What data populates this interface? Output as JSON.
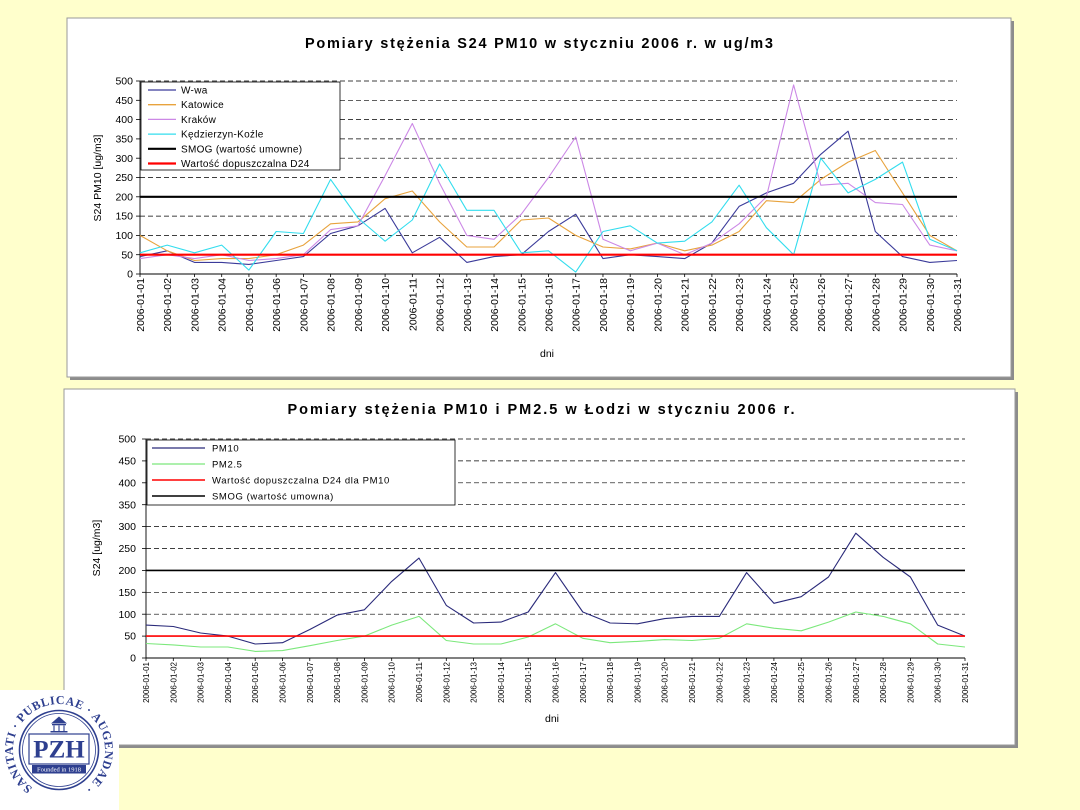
{
  "slide": {
    "background_color": "#FFFFCC",
    "logo": {
      "circle_text": "SANITATI · PUBLICAE · AUGENDAE ·",
      "center_text": "PZH",
      "founded_text": "Founded in 1918",
      "color": "#2E3F8F",
      "emblem_icon": "temple-emblem-icon"
    }
  },
  "chart_data": [
    {
      "type": "line",
      "title": "Pomiary stężenia S24 PM10 w styczniu 2006 r. w ug/m3",
      "xlabel": "dni",
      "ylabel": "S24 PM10 [ug/m3]",
      "ylim": [
        0,
        500
      ],
      "yticks": [
        0,
        50,
        100,
        150,
        200,
        250,
        300,
        350,
        400,
        450,
        500
      ],
      "grid": true,
      "legend": "top-left",
      "categories": [
        "2006-01-01",
        "2006-01-02",
        "2006-01-03",
        "2006-01-04",
        "2006-01-05",
        "2006-01-06",
        "2006-01-07",
        "2006-01-08",
        "2006-01-09",
        "2006-01-10",
        "2006-01-11",
        "2006-01-12",
        "2006-01-13",
        "2006-01-14",
        "2006-01-15",
        "2006-01-16",
        "2006-01-17",
        "2006-01-18",
        "2006-01-19",
        "2006-01-20",
        "2006-01-21",
        "2006-01-22",
        "2006-01-23",
        "2006-01-24",
        "2006-01-25",
        "2006-01-26",
        "2006-01-27",
        "2006-01-28",
        "2006-01-29",
        "2006-01-30",
        "2006-01-31"
      ],
      "series": [
        {
          "name": "W-wa",
          "color": "#3B3B9A",
          "values": [
            45,
            60,
            30,
            30,
            25,
            35,
            45,
            105,
            125,
            170,
            55,
            95,
            30,
            45,
            50,
            110,
            155,
            40,
            50,
            45,
            40,
            80,
            175,
            210,
            235,
            310,
            370,
            110,
            45,
            30,
            35
          ]
        },
        {
          "name": "Katowice",
          "color": "#E8A33D",
          "values": [
            100,
            60,
            35,
            40,
            40,
            50,
            75,
            130,
            135,
            195,
            215,
            135,
            70,
            70,
            140,
            145,
            100,
            70,
            65,
            80,
            60,
            75,
            110,
            190,
            185,
            245,
            290,
            320,
            210,
            100,
            60
          ]
        },
        {
          "name": "Kraków",
          "color": "#CC88E6",
          "values": [
            40,
            50,
            40,
            50,
            35,
            40,
            50,
            115,
            125,
            255,
            390,
            235,
            100,
            90,
            155,
            250,
            355,
            90,
            60,
            80,
            50,
            80,
            130,
            200,
            490,
            230,
            235,
            185,
            180,
            75,
            60
          ]
        },
        {
          "name": "Kędzierzyn-Koźle",
          "color": "#33DDEE",
          "values": [
            55,
            75,
            55,
            75,
            10,
            110,
            105,
            245,
            145,
            85,
            140,
            285,
            165,
            165,
            55,
            60,
            5,
            110,
            125,
            80,
            85,
            135,
            230,
            120,
            50,
            300,
            210,
            245,
            290,
            90,
            60
          ]
        }
      ],
      "reference_lines": [
        {
          "name": "SMOG (wartość umowne)",
          "value": 200,
          "color": "#000000"
        },
        {
          "name": "Wartość dopuszczalna D24",
          "value": 50,
          "color": "#FF0000"
        }
      ]
    },
    {
      "type": "line",
      "title": "Pomiary stężenia PM10 i PM2.5 w Łodzi w styczniu 2006 r.",
      "xlabel": "dni",
      "ylabel": "S24 [ug/m3]",
      "ylim": [
        0,
        500
      ],
      "yticks": [
        0,
        50,
        100,
        150,
        200,
        250,
        300,
        350,
        400,
        450,
        500
      ],
      "grid": true,
      "legend": "top-left",
      "categories": [
        "2006-01-01",
        "2006-01-02",
        "2006-01-03",
        "2006-01-04",
        "2006-01-05",
        "2006-01-06",
        "2006-01-07",
        "2006-01-08",
        "2006-01-09",
        "2006-01-10",
        "2006-01-11",
        "2006-01-12",
        "2006-01-13",
        "2006-01-14",
        "2006-01-15",
        "2006-01-16",
        "2006-01-17",
        "2006-01-18",
        "2006-01-19",
        "2006-01-20",
        "2006-01-21",
        "2006-01-22",
        "2006-01-23",
        "2006-01-24",
        "2006-01-25",
        "2006-01-26",
        "2006-01-27",
        "2006-01-28",
        "2006-01-29",
        "2006-01-30",
        "2006-01-31"
      ],
      "series": [
        {
          "name": "PM10",
          "color": "#2A2A7A",
          "values": [
            75,
            72,
            57,
            50,
            32,
            35,
            65,
            98,
            110,
            175,
            228,
            120,
            80,
            82,
            105,
            195,
            105,
            80,
            78,
            90,
            95,
            95,
            195,
            125,
            140,
            185,
            285,
            230,
            185,
            75,
            50
          ]
        },
        {
          "name": "PM2.5",
          "color": "#7CE87C",
          "values": [
            33,
            30,
            25,
            25,
            15,
            17,
            28,
            40,
            50,
            75,
            95,
            40,
            32,
            32,
            48,
            78,
            45,
            35,
            38,
            42,
            40,
            45,
            78,
            68,
            62,
            82,
            105,
            95,
            78,
            32,
            25
          ]
        }
      ],
      "reference_lines": [
        {
          "name": "Wartość dopuszczalna D24 dla PM10",
          "value": 50,
          "color": "#FF0000"
        },
        {
          "name": "SMOG (wartość umowna)",
          "value": 200,
          "color": "#000000"
        }
      ]
    }
  ]
}
